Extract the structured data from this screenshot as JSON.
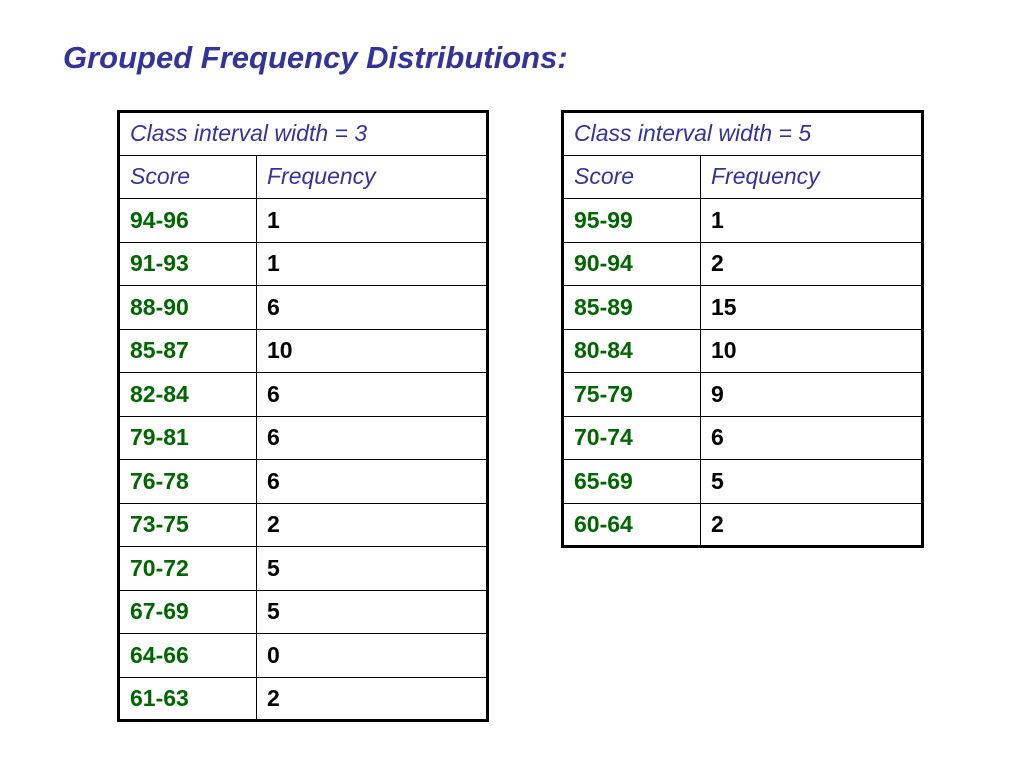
{
  "title": "Grouped Frequency Distributions:",
  "colors": {
    "title": "#333399",
    "header": "#333399",
    "score": "#006600",
    "frequency": "#000000"
  },
  "tables": [
    {
      "caption": "Class interval width = 3",
      "headers": {
        "score": "Score",
        "frequency": "Frequency"
      },
      "rows": [
        {
          "score": "94-96",
          "frequency": "1"
        },
        {
          "score": "91-93",
          "frequency": "1"
        },
        {
          "score": "88-90",
          "frequency": "6"
        },
        {
          "score": "85-87",
          "frequency": "10"
        },
        {
          "score": "82-84",
          "frequency": "6"
        },
        {
          "score": "79-81",
          "frequency": "6"
        },
        {
          "score": "76-78",
          "frequency": "6"
        },
        {
          "score": "73-75",
          "frequency": "2"
        },
        {
          "score": "70-72",
          "frequency": "5"
        },
        {
          "score": "67-69",
          "frequency": "5"
        },
        {
          "score": "64-66",
          "frequency": "0"
        },
        {
          "score": "61-63",
          "frequency": "2"
        }
      ]
    },
    {
      "caption": "Class interval width = 5",
      "headers": {
        "score": "Score",
        "frequency": "Frequency"
      },
      "rows": [
        {
          "score": "95-99",
          "frequency": "1"
        },
        {
          "score": "90-94",
          "frequency": "2"
        },
        {
          "score": "85-89",
          "frequency": "15"
        },
        {
          "score": "80-84",
          "frequency": "10"
        },
        {
          "score": "75-79",
          "frequency": "9"
        },
        {
          "score": "70-74",
          "frequency": "6"
        },
        {
          "score": "65-69",
          "frequency": "5"
        },
        {
          "score": "60-64",
          "frequency": "2"
        }
      ]
    }
  ]
}
